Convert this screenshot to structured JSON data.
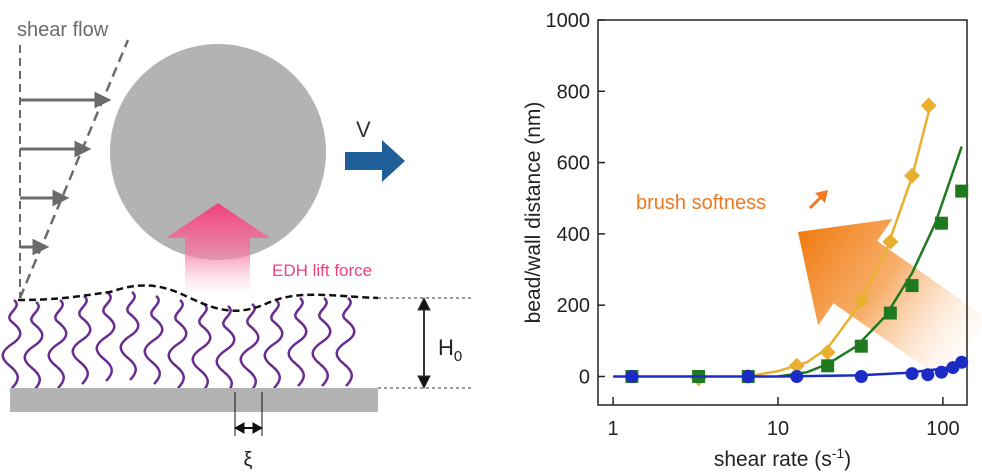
{
  "diagram": {
    "flow_label": "shear flow",
    "velocity_label": "V",
    "lift_label": "EDH lift force",
    "height_label": [
      "H",
      "0"
    ],
    "spacing_label": "ξ"
  },
  "chart_data": {
    "type": "scatter",
    "x_label": [
      "shear rate (s",
      "-1",
      ")"
    ],
    "y_label": "bead/wall distance (nm)",
    "annotation": "brush softness",
    "xscale": "log",
    "xlim": [
      0.81,
      140
    ],
    "xticks": [
      1,
      10,
      100
    ],
    "ylim": [
      -80,
      1000
    ],
    "yticks": [
      0,
      200,
      400,
      600,
      800,
      1000
    ],
    "series": [
      {
        "color": "#e8b030",
        "marker": "diamond",
        "x": [
          3.3,
          6.6,
          13,
          20,
          32,
          48,
          65,
          82
        ],
        "values": [
          -5,
          0,
          30,
          68,
          215,
          378,
          563,
          760
        ],
        "fit": {
          "x": [
            6.5,
            10,
            15,
            20,
            30,
            45,
            65,
            85
          ],
          "values": [
            0,
            15,
            40,
            80,
            190,
            350,
            560,
            770
          ]
        }
      },
      {
        "color": "#1f7a1f",
        "marker": "square",
        "x": [
          1.3,
          3.3,
          6.6,
          20,
          32,
          48,
          65,
          98,
          130
        ],
        "values": [
          0,
          0,
          0,
          30,
          85,
          178,
          255,
          430,
          520
        ],
        "fit": {
          "x": [
            10,
            15,
            20,
            30,
            45,
            65,
            90,
            130
          ],
          "values": [
            0,
            12,
            35,
            85,
            170,
            290,
            430,
            645
          ]
        }
      },
      {
        "color": "#1a2cc4",
        "marker": "circle",
        "x": [
          1.3,
          6.6,
          13,
          32,
          65,
          81,
          98,
          115,
          130
        ],
        "values": [
          0,
          0,
          0,
          0,
          8,
          5,
          12,
          25,
          40
        ],
        "fit": {
          "x": [
            1,
            10,
            30,
            60,
            100,
            130
          ],
          "values": [
            0,
            0,
            3,
            10,
            22,
            35
          ]
        }
      }
    ]
  }
}
